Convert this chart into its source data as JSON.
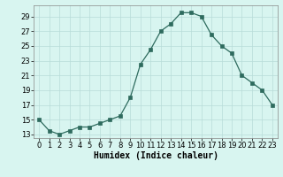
{
  "x": [
    0,
    1,
    2,
    3,
    4,
    5,
    6,
    7,
    8,
    9,
    10,
    11,
    12,
    13,
    14,
    15,
    16,
    17,
    18,
    19,
    20,
    21,
    22,
    23
  ],
  "y": [
    15,
    13.5,
    13,
    13.5,
    14,
    14,
    14.5,
    15,
    15.5,
    18,
    22.5,
    24.5,
    27,
    28,
    29.5,
    29.5,
    29,
    26.5,
    25,
    24,
    21,
    20,
    19,
    17
  ],
  "line_color": "#2e6b5e",
  "marker": "s",
  "marker_size": 2.5,
  "bg_color": "#d8f5f0",
  "grid_color": "#b8dcd8",
  "xlabel": "Humidex (Indice chaleur)",
  "xlim": [
    -0.5,
    23.5
  ],
  "ylim": [
    12.5,
    30.5
  ],
  "yticks": [
    13,
    15,
    17,
    19,
    21,
    23,
    25,
    27,
    29
  ],
  "xticks": [
    0,
    1,
    2,
    3,
    4,
    5,
    6,
    7,
    8,
    9,
    10,
    11,
    12,
    13,
    14,
    15,
    16,
    17,
    18,
    19,
    20,
    21,
    22,
    23
  ],
  "font_size": 6.5,
  "xlabel_fontsize": 7,
  "tick_fontsize": 6
}
